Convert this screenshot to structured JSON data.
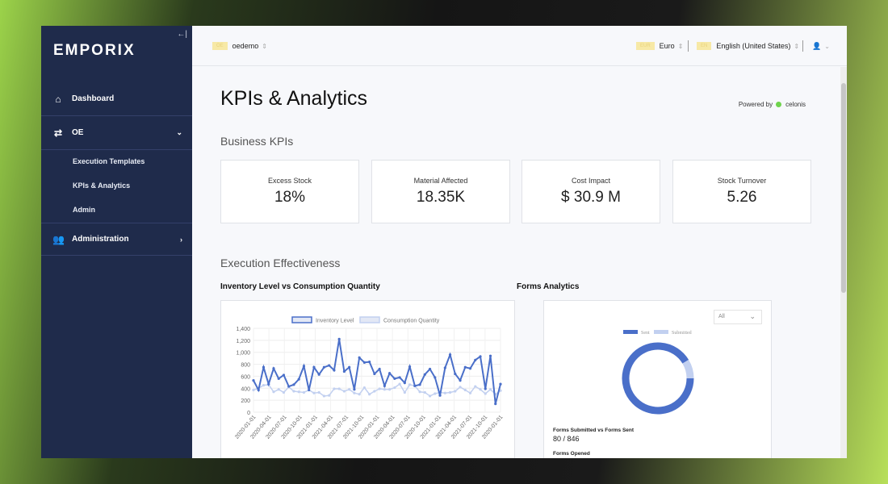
{
  "sidebar": {
    "logo": "emporix",
    "items": [
      {
        "label": "Dashboard",
        "icon": "home-icon"
      },
      {
        "label": "OE",
        "icon": "workflow-icon"
      },
      {
        "label": "Administration",
        "icon": "users-icon"
      }
    ],
    "sub_items": [
      "Execution Templates",
      "KPIs & Analytics",
      "Admin"
    ]
  },
  "topbar": {
    "tenant_badge": "OE",
    "tenant": "oedemo",
    "currency_badge": "EUR",
    "currency": "Euro",
    "language_badge": "EN",
    "language": "English (United States)"
  },
  "page": {
    "title": "KPIs & Analytics",
    "powered_by": "Powered by",
    "powered_brand": "celonis",
    "business_kpis": "Business KPIs",
    "execution_effectiveness": "Execution Effectiveness"
  },
  "kpis": [
    {
      "label": "Excess Stock",
      "value": "18%"
    },
    {
      "label": "Material Affected",
      "value": "18.35K"
    },
    {
      "label": "Cost Impact",
      "value": "$ 30.9 M"
    },
    {
      "label": "Stock Turnover",
      "value": "5.26"
    }
  ],
  "forms": {
    "title": "Forms Analytics",
    "filter": "All",
    "submitted_label": "Forms Submitted vs Forms Sent",
    "submitted_value": "80 / 846",
    "opened_label": "Forms Opened"
  },
  "colors": {
    "primary": "#4a6fc9",
    "light": "#c2d0f0"
  },
  "chart_data": [
    {
      "type": "line",
      "title": "Inventory Level vs Consumption Quantity",
      "ylim": [
        0,
        1400
      ],
      "yticks": [
        "0",
        "200",
        "400",
        "600",
        "800",
        "1,000",
        "1,200",
        "1,400"
      ],
      "xticks": [
        "2020-01-01",
        "2020-04-01",
        "2020-07-01",
        "2020-10-01",
        "2021-01-01",
        "2021-04-01",
        "2021-07-01",
        "2021-10-01",
        "2020-01-01",
        "2020-04-01",
        "2020-07-01",
        "2020-10-01",
        "2021-01-01",
        "2021-04-01",
        "2021-07-01",
        "2021-10-01",
        "2020-01-01"
      ],
      "legend": "top",
      "series": [
        {
          "name": "Inventory Level",
          "values": [
            530,
            370,
            750,
            470,
            730,
            560,
            620,
            430,
            460,
            550,
            770,
            370,
            750,
            630,
            750,
            780,
            700,
            1220,
            680,
            750,
            380,
            910,
            830,
            840,
            640,
            720,
            440,
            650,
            560,
            580,
            490,
            760,
            440,
            460,
            630,
            720,
            580,
            280,
            740,
            960,
            640,
            530,
            750,
            730,
            870,
            930,
            390,
            940,
            140,
            470
          ]
        },
        {
          "name": "Consumption Quantity",
          "values": [
            370,
            400,
            450,
            460,
            340,
            380,
            330,
            420,
            350,
            340,
            330,
            370,
            320,
            330,
            270,
            280,
            390,
            390,
            350,
            380,
            320,
            300,
            410,
            300,
            350,
            390,
            380,
            380,
            410,
            470,
            330,
            460,
            440,
            340,
            330,
            270,
            310,
            330,
            320,
            330,
            350,
            420,
            370,
            320,
            430,
            380,
            310,
            380,
            300,
            360
          ]
        }
      ]
    },
    {
      "type": "pie",
      "title": "Forms Analytics",
      "legend": "top",
      "labels": [
        "Sent",
        "Submitted"
      ],
      "values": [
        846,
        80
      ]
    }
  ]
}
